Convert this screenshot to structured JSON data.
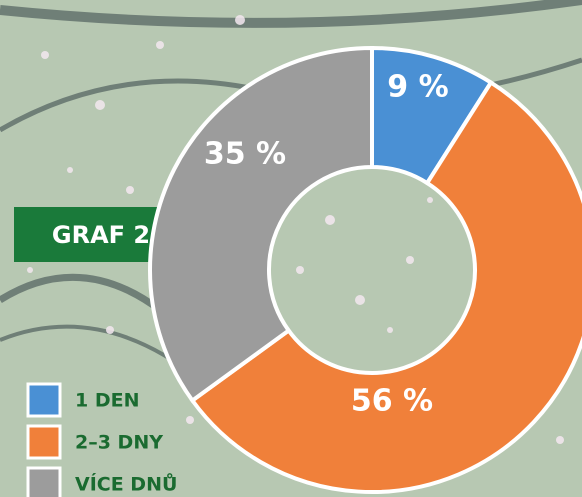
{
  "chart_data": {
    "type": "donut",
    "title": "GRAF 2",
    "categories": [
      "1 DEN",
      "2–3 DNY",
      "VÍCE DNŮ"
    ],
    "values": [
      9,
      56,
      35
    ],
    "value_labels": [
      "9 %",
      "56 %",
      "35 %"
    ],
    "colors": [
      "#4a90d4",
      "#f0803a",
      "#9c9c9c"
    ],
    "legend": "bottom-left"
  }
}
